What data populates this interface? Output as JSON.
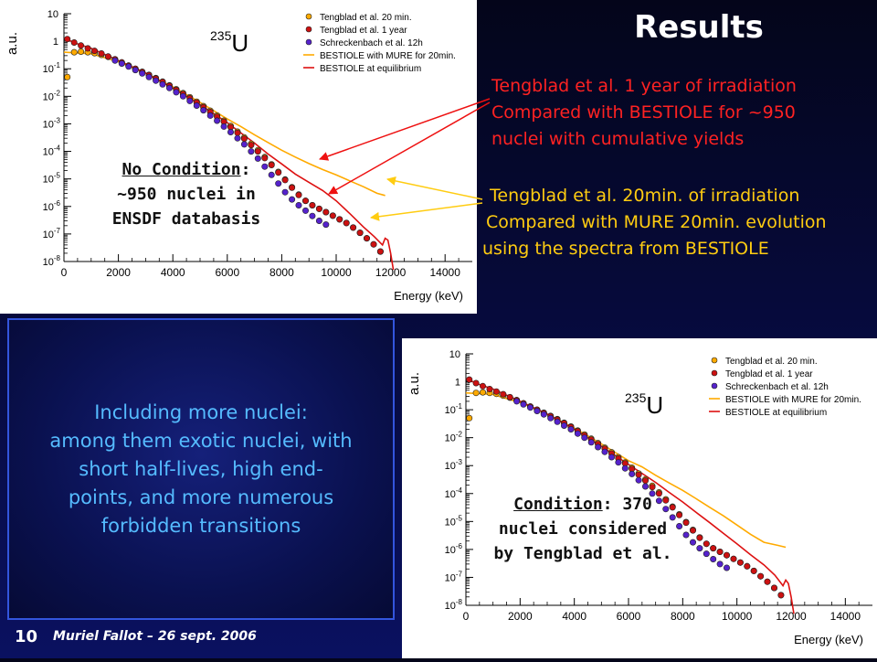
{
  "slide": {
    "title": "Results",
    "red_text_lines": [
      "Tengblad et al. 1 year of irradiation",
      "Compared with BESTIOLE for ~950",
      "nuclei with cumulative yields"
    ],
    "yellow_text_lines": [
      "Tengblad et al. 20min. of irradiation",
      "Compared with MURE 20min. evolution",
      "using the spectra from BESTIOLE"
    ],
    "box_text_lines": [
      "Including more nuclei:",
      "among them exotic nuclei, with",
      "short half-lives, high end-",
      "points, and more numerous",
      "forbidden transitions"
    ],
    "footer": {
      "page_number": "10",
      "author": "Muriel Fallot – 26 sept. 2006"
    },
    "colors": {
      "red_text": "#ff2222",
      "yellow_text": "#ffcc11",
      "box_text": "#55bbff",
      "arrow_red": "#ee1111",
      "arrow_yellow": "#ffcc11"
    }
  },
  "chart_data": [
    {
      "type": "scatter",
      "xlabel": "Energy (keV)",
      "ylabel": "a.u.",
      "xlim": [
        0,
        15000
      ],
      "ylim_log10": [
        -8,
        1
      ],
      "x_ticks": [
        "0",
        "2000",
        "4000",
        "6000",
        "8000",
        "10000",
        "12000",
        "14000"
      ],
      "y_ticks": [
        "10",
        "1",
        "10-1",
        "10-2",
        "10-3",
        "10-4",
        "10-5",
        "10-6",
        "10-7",
        "10-8"
      ],
      "isotope": {
        "mass": "235",
        "symbol": "U"
      },
      "annotation": {
        "underlined": "No Condition",
        "rest_first_line": ":",
        "lines": [
          "~950 nuclei in",
          "ENSDF databasis"
        ]
      },
      "legend": [
        {
          "label": "Tengblad et al. 20 min.",
          "color": "#ffaa00",
          "kind": "marker"
        },
        {
          "label": "Tengblad et al. 1 year",
          "color": "#cc1111",
          "kind": "marker"
        },
        {
          "label": "Schreckenbach et al. 12h",
          "color": "#5522cc",
          "kind": "marker"
        },
        {
          "label": "BESTIOLE with MURE for 20min.",
          "color": "#ffaa00",
          "kind": "line"
        },
        {
          "label": "BESTIOLE at equilibrium",
          "color": "#dd1111",
          "kind": "line"
        }
      ],
      "series": [
        {
          "name": "Tengblad et al. 20 min.",
          "kind": "marker",
          "color": "#ffaa00",
          "x": [
            125,
            375,
            625,
            875,
            1125,
            1375,
            1625,
            1875,
            2125,
            2375,
            2625,
            2875,
            3125,
            3375,
            3625,
            3875,
            4125,
            4375,
            4625,
            4875,
            5125,
            5375,
            5625,
            5875,
            6125,
            6375,
            6625,
            6875,
            7125,
            7375,
            7625,
            7875,
            8125,
            8375,
            8625,
            8875,
            9125,
            9375,
            9625,
            9875,
            10125,
            10375,
            10625,
            10875,
            11125,
            11375,
            11625
          ],
          "y": [
            0.05,
            0.4,
            0.42,
            0.4,
            0.37,
            0.32,
            0.27,
            0.22,
            0.17,
            0.13,
            0.1,
            0.078,
            0.06,
            0.046,
            0.034,
            0.025,
            0.018,
            0.013,
            0.0092,
            0.0064,
            0.0044,
            0.003,
            0.002,
            0.0013,
            0.00084,
            0.00052,
            0.00032,
            0.00019,
            0.00011,
            6.2e-05,
            3.4e-05,
            1.8e-05,
            9.5e-06,
            5e-06,
            2.7e-06,
            1.6e-06,
            1.1e-06,
            8.2e-07,
            6.2e-07,
            4.6e-07,
            3.4e-07,
            2.5e-07,
            1.7e-07,
            1.1e-07,
            7e-08,
            4.2e-08,
            2.3e-08
          ]
        },
        {
          "name": "Tengblad et al. 1 year",
          "kind": "marker",
          "color": "#cc1111",
          "x": [
            125,
            375,
            625,
            875,
            1125,
            1375,
            1625,
            1875,
            2125,
            2375,
            2625,
            2875,
            3125,
            3375,
            3625,
            3875,
            4125,
            4375,
            4625,
            4875,
            5125,
            5375,
            5625,
            5875,
            6125,
            6375,
            6625,
            6875,
            7125,
            7375,
            7625,
            7875,
            8125,
            8375,
            8625,
            8875,
            9125,
            9375,
            9625,
            9875,
            10125,
            10375,
            10625,
            10875,
            11125,
            11375,
            11625
          ],
          "y": [
            1.2,
            0.9,
            0.7,
            0.55,
            0.45,
            0.36,
            0.28,
            0.22,
            0.17,
            0.13,
            0.1,
            0.076,
            0.058,
            0.044,
            0.033,
            0.024,
            0.017,
            0.012,
            0.0085,
            0.0059,
            0.004,
            0.0027,
            0.0018,
            0.0012,
            0.00076,
            0.00047,
            0.00029,
            0.00017,
            0.0001,
            5.7e-05,
            3.2e-05,
            1.7e-05,
            9.1e-06,
            4.8e-06,
            2.6e-06,
            1.6e-06,
            1.1e-06,
            8.2e-07,
            6.2e-07,
            4.6e-07,
            3.4e-07,
            2.5e-07,
            1.7e-07,
            1.1e-07,
            7e-08,
            4.2e-08,
            2.3e-08
          ]
        },
        {
          "name": "Schreckenbach et al. 12h",
          "kind": "marker",
          "color": "#5522cc",
          "x": [
            1875,
            2125,
            2375,
            2625,
            2875,
            3125,
            3375,
            3625,
            3875,
            4125,
            4375,
            4625,
            4875,
            5125,
            5375,
            5625,
            5875,
            6125,
            6375,
            6625,
            6875,
            7125,
            7375,
            7625,
            7875,
            8125,
            8375,
            8625,
            8875,
            9125,
            9375,
            9625
          ],
          "y": [
            0.2,
            0.155,
            0.12,
            0.09,
            0.068,
            0.05,
            0.037,
            0.027,
            0.02,
            0.014,
            0.01,
            0.0068,
            0.0046,
            0.0031,
            0.002,
            0.0013,
            0.0008,
            0.0005,
            0.0003,
            0.00018,
            0.0001,
            5.5e-05,
            2.8e-05,
            1.4e-05,
            6.8e-06,
            3.3e-06,
            1.8e-06,
            1.1e-06,
            7e-07,
            4.5e-07,
            3e-07,
            2.2e-07
          ]
        },
        {
          "name": "BESTIOLE with MURE for 20min.",
          "kind": "line",
          "color": "#ffaa00",
          "x": [
            0,
            1000,
            2000,
            3000,
            4000,
            5000,
            6000,
            6500,
            7000,
            7500,
            8000,
            8500,
            9000,
            9500,
            10000,
            10500,
            11000,
            11500,
            11800
          ],
          "y": [
            0.4,
            0.35,
            0.18,
            0.07,
            0.022,
            0.006,
            0.0015,
            0.0008,
            0.0004,
            0.00021,
            0.00011,
            6.2e-05,
            3.6e-05,
            2.2e-05,
            1.4e-05,
            8.5e-06,
            5.2e-06,
            3e-06,
            2.5e-06
          ]
        },
        {
          "name": "BESTIOLE at equilibrium",
          "kind": "line",
          "color": "#dd1111",
          "x": [
            0,
            500,
            1000,
            2000,
            3000,
            4000,
            5000,
            6000,
            7000,
            7500,
            8000,
            8500,
            9000,
            9500,
            10000,
            10500,
            11000,
            11400,
            11700,
            11800,
            11900,
            12000,
            12100
          ],
          "y": [
            1.3,
            0.8,
            0.55,
            0.2,
            0.07,
            0.02,
            0.005,
            0.0011,
            0.0002,
            8e-05,
            3.5e-05,
            1.5e-05,
            7.5e-06,
            3.8e-06,
            1.6e-06,
            5.5e-07,
            1.8e-07,
            8e-08,
            4e-08,
            7e-08,
            6e-08,
            2e-08,
            5e-09
          ]
        }
      ]
    },
    {
      "type": "scatter",
      "xlabel": "Energy (keV)",
      "ylabel": "a.u.",
      "xlim": [
        0,
        15000
      ],
      "ylim_log10": [
        -8,
        1
      ],
      "x_ticks": [
        "0",
        "2000",
        "4000",
        "6000",
        "8000",
        "10000",
        "12000",
        "14000"
      ],
      "y_ticks": [
        "10",
        "1",
        "10-1",
        "10-2",
        "10-3",
        "10-4",
        "10-5",
        "10-6",
        "10-7",
        "10-8"
      ],
      "isotope": {
        "mass": "235",
        "symbol": "U"
      },
      "annotation": {
        "underlined": "Condition",
        "rest_first_line": ": 370",
        "lines": [
          "nuclei considered",
          "by Tengblad et al."
        ]
      },
      "legend": [
        {
          "label": "Tengblad et al. 20 min.",
          "color": "#ffaa00",
          "kind": "marker"
        },
        {
          "label": "Tengblad et al. 1 year",
          "color": "#cc1111",
          "kind": "marker"
        },
        {
          "label": "Schreckenbach et al. 12h",
          "color": "#5522cc",
          "kind": "marker"
        },
        {
          "label": "BESTIOLE with MURE for 20min.",
          "color": "#ffaa00",
          "kind": "line"
        },
        {
          "label": "BESTIOLE at equilibrium",
          "color": "#dd1111",
          "kind": "line"
        }
      ],
      "series": [
        {
          "name": "Tengblad et al. 20 min.",
          "kind": "marker",
          "color": "#ffaa00",
          "x": [
            125,
            375,
            625,
            875,
            1125,
            1375,
            1625,
            1875,
            2125,
            2375,
            2625,
            2875,
            3125,
            3375,
            3625,
            3875,
            4125,
            4375,
            4625,
            4875,
            5125,
            5375,
            5625,
            5875,
            6125,
            6375,
            6625,
            6875,
            7125,
            7375,
            7625,
            7875,
            8125,
            8375,
            8625,
            8875,
            9125,
            9375,
            9625,
            9875,
            10125,
            10375,
            10625,
            10875,
            11125,
            11375,
            11625
          ],
          "y": [
            0.05,
            0.4,
            0.42,
            0.4,
            0.37,
            0.32,
            0.27,
            0.22,
            0.17,
            0.13,
            0.1,
            0.078,
            0.06,
            0.046,
            0.034,
            0.025,
            0.018,
            0.013,
            0.0092,
            0.0064,
            0.0044,
            0.003,
            0.002,
            0.0013,
            0.00084,
            0.00052,
            0.00032,
            0.00019,
            0.00011,
            6.2e-05,
            3.4e-05,
            1.8e-05,
            9.5e-06,
            5e-06,
            2.7e-06,
            1.6e-06,
            1.1e-06,
            8.2e-07,
            6.2e-07,
            4.6e-07,
            3.4e-07,
            2.5e-07,
            1.7e-07,
            1.1e-07,
            7e-08,
            4.2e-08,
            2.3e-08
          ]
        },
        {
          "name": "Tengblad et al. 1 year",
          "kind": "marker",
          "color": "#cc1111",
          "x": [
            125,
            375,
            625,
            875,
            1125,
            1375,
            1625,
            1875,
            2125,
            2375,
            2625,
            2875,
            3125,
            3375,
            3625,
            3875,
            4125,
            4375,
            4625,
            4875,
            5125,
            5375,
            5625,
            5875,
            6125,
            6375,
            6625,
            6875,
            7125,
            7375,
            7625,
            7875,
            8125,
            8375,
            8625,
            8875,
            9125,
            9375,
            9625,
            9875,
            10125,
            10375,
            10625,
            10875,
            11125,
            11375,
            11625
          ],
          "y": [
            1.2,
            0.9,
            0.7,
            0.55,
            0.45,
            0.36,
            0.28,
            0.22,
            0.17,
            0.13,
            0.1,
            0.076,
            0.058,
            0.044,
            0.033,
            0.024,
            0.017,
            0.012,
            0.0085,
            0.0059,
            0.004,
            0.0027,
            0.0018,
            0.0012,
            0.00076,
            0.00047,
            0.00029,
            0.00017,
            0.0001,
            5.7e-05,
            3.2e-05,
            1.7e-05,
            9.1e-06,
            4.8e-06,
            2.6e-06,
            1.6e-06,
            1.1e-06,
            8.2e-07,
            6.2e-07,
            4.6e-07,
            3.4e-07,
            2.5e-07,
            1.7e-07,
            1.1e-07,
            7e-08,
            4.2e-08,
            2.3e-08
          ]
        },
        {
          "name": "Schreckenbach et al. 12h",
          "kind": "marker",
          "color": "#5522cc",
          "x": [
            1875,
            2125,
            2375,
            2625,
            2875,
            3125,
            3375,
            3625,
            3875,
            4125,
            4375,
            4625,
            4875,
            5125,
            5375,
            5625,
            5875,
            6125,
            6375,
            6625,
            6875,
            7125,
            7375,
            7625,
            7875,
            8125,
            8375,
            8625,
            8875,
            9125,
            9375,
            9625
          ],
          "y": [
            0.2,
            0.155,
            0.12,
            0.09,
            0.068,
            0.05,
            0.037,
            0.027,
            0.02,
            0.014,
            0.01,
            0.0068,
            0.0046,
            0.0031,
            0.002,
            0.0013,
            0.0008,
            0.0005,
            0.0003,
            0.00018,
            0.0001,
            5.5e-05,
            2.8e-05,
            1.4e-05,
            6.8e-06,
            3.3e-06,
            1.8e-06,
            1.1e-06,
            7e-07,
            4.5e-07,
            3e-07,
            2.2e-07
          ]
        },
        {
          "name": "BESTIOLE with MURE for 20min.",
          "kind": "line",
          "color": "#ffaa00",
          "x": [
            0,
            1000,
            2000,
            3000,
            4000,
            5000,
            6000,
            6500,
            7000,
            7500,
            8000,
            8500,
            9000,
            9500,
            10000,
            10500,
            11000,
            11500,
            11800
          ],
          "y": [
            0.4,
            0.35,
            0.18,
            0.07,
            0.022,
            0.006,
            0.0015,
            0.0009,
            0.00045,
            0.00024,
            0.00013,
            6.5e-05,
            3.2e-05,
            1.6e-05,
            7.5e-06,
            3.5e-06,
            1.8e-06,
            1.4e-06,
            1.2e-06
          ]
        },
        {
          "name": "BESTIOLE at equilibrium",
          "kind": "line",
          "color": "#dd1111",
          "x": [
            0,
            500,
            1000,
            2000,
            3000,
            4000,
            5000,
            6000,
            7000,
            7500,
            8000,
            8500,
            9000,
            9500,
            10000,
            10500,
            11000,
            11400,
            11700,
            11800,
            11900,
            12000,
            12100
          ],
          "y": [
            1.3,
            0.8,
            0.55,
            0.2,
            0.07,
            0.02,
            0.005,
            0.0011,
            0.00025,
            0.00011,
            5e-05,
            2.1e-05,
            9e-06,
            3.8e-06,
            1.6e-06,
            6.5e-07,
            2.8e-07,
            1.2e-07,
            5e-08,
            8e-08,
            6e-08,
            2e-08,
            5e-09
          ]
        }
      ]
    }
  ]
}
